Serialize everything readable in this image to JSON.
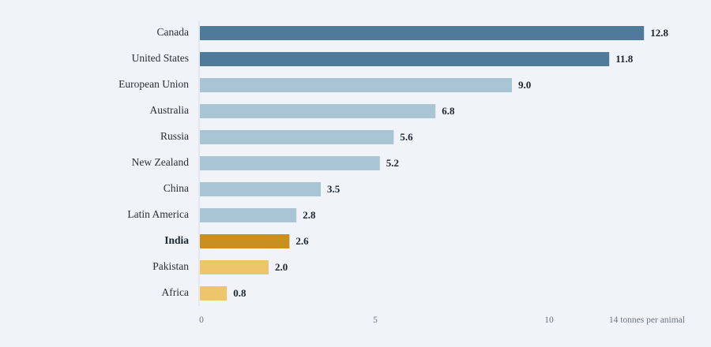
{
  "chart_data": {
    "type": "bar",
    "orientation": "horizontal",
    "title": "",
    "xlabel": "",
    "ylabel": "",
    "unit_label": "14 tonnes per animal",
    "xlim": [
      0,
      14
    ],
    "x_ticks": [
      0,
      5,
      10
    ],
    "grid": false,
    "categories": [
      "Canada",
      "United States",
      "European Union",
      "Australia",
      "Russia",
      "New Zealand",
      "China",
      "Latin America",
      "India",
      "Pakistan",
      "Africa"
    ],
    "values": [
      12.8,
      11.8,
      9.0,
      6.8,
      5.6,
      5.2,
      3.5,
      2.8,
      2.6,
      2.0,
      0.8
    ],
    "value_labels": [
      "12.8",
      "11.8",
      "9.0",
      "6.8",
      "5.6",
      "5.2",
      "3.5",
      "2.8",
      "2.6",
      "2.0",
      "0.8"
    ],
    "highlighted_category": "India",
    "bar_colors": [
      "#4f7a9a",
      "#4f7a9a",
      "#a9c4d2",
      "#a9c4d2",
      "#a9c4d2",
      "#a9c4d2",
      "#a9c4d2",
      "#a9c4d2",
      "#c79020",
      "#edc56a",
      "#edc56a"
    ],
    "axis_line_color": "#d3dbe3"
  }
}
